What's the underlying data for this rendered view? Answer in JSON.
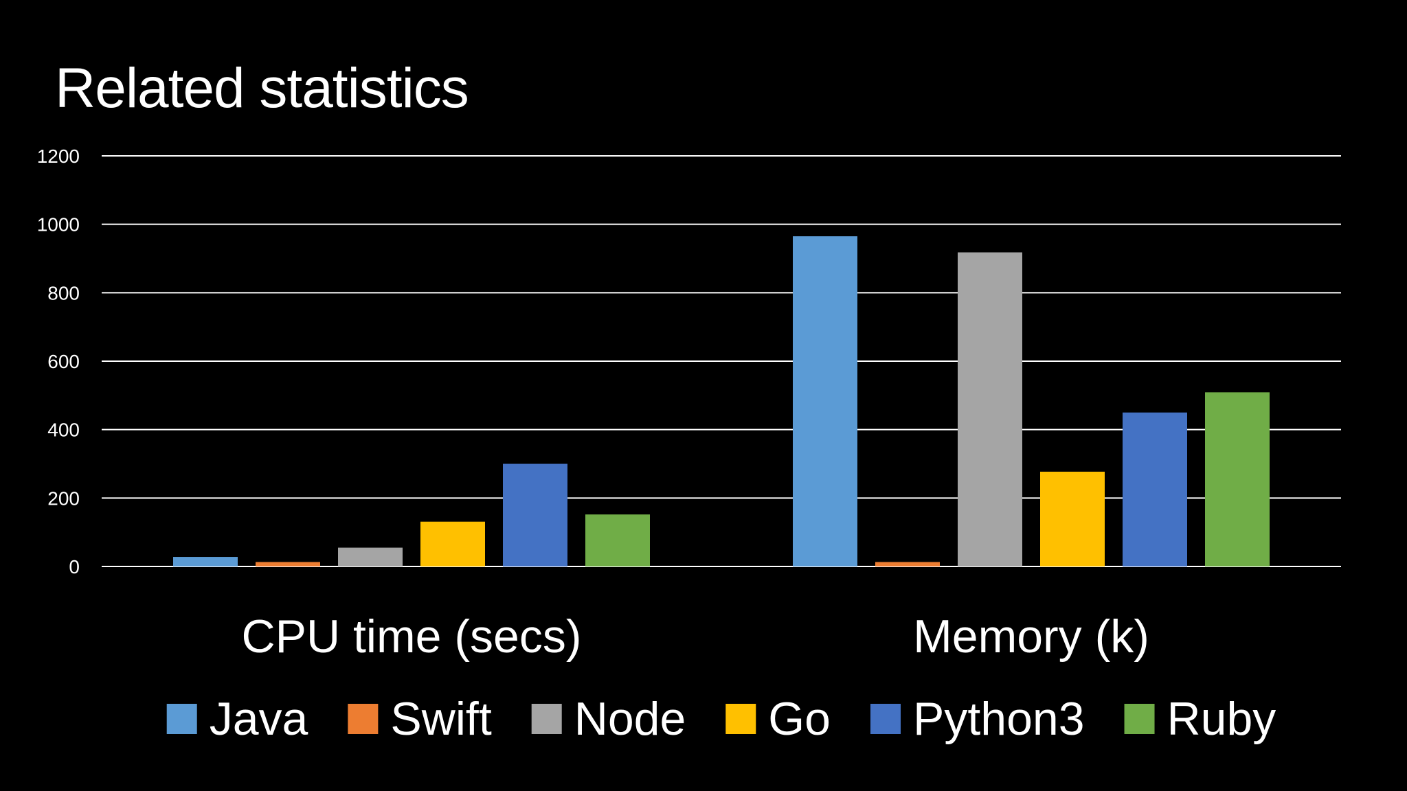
{
  "slide": {
    "title": "Related statistics"
  },
  "chart_data": {
    "type": "bar",
    "title": "Related statistics",
    "xlabel": "",
    "ylabel": "",
    "ylim": [
      0,
      1200
    ],
    "yticks": [
      0,
      200,
      400,
      600,
      800,
      1000,
      1200
    ],
    "grid": true,
    "legend_position": "bottom",
    "categories": [
      "CPU time (secs)",
      "Memory (k)"
    ],
    "series": [
      {
        "name": "Java",
        "color": "#5B9BD5",
        "values": [
          28,
          965
        ]
      },
      {
        "name": "Swift",
        "color": "#ED7D31",
        "values": [
          13,
          13
        ]
      },
      {
        "name": "Node",
        "color": "#A5A5A5",
        "values": [
          55,
          918
        ]
      },
      {
        "name": "Go",
        "color": "#FFC000",
        "values": [
          131,
          277
        ]
      },
      {
        "name": "Python3",
        "color": "#4472C4",
        "values": [
          300,
          450
        ]
      },
      {
        "name": "Ruby",
        "color": "#70AD47",
        "values": [
          152,
          509
        ]
      }
    ]
  }
}
